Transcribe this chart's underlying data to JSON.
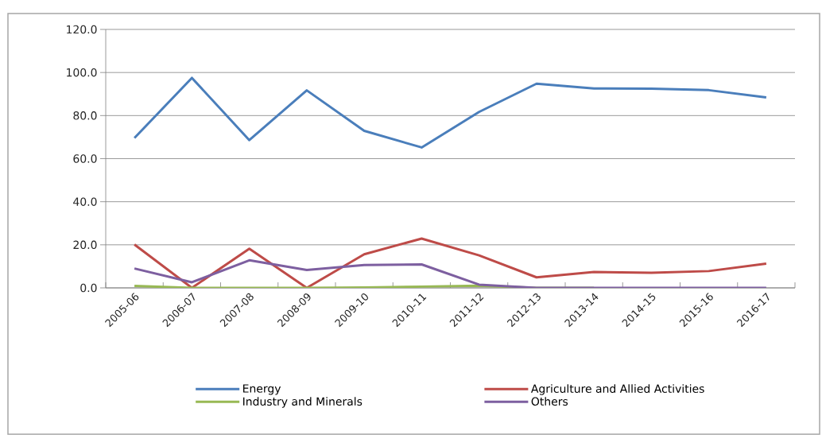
{
  "chart_data": {
    "type": "line",
    "categories": [
      "2005-06",
      "2006-07",
      "2007-08",
      "2008-09",
      "2009-10",
      "2010-11",
      "2011-12",
      "2012-13",
      "2013-14",
      "2014-15",
      "2015-16",
      "2016-17"
    ],
    "series": [
      {
        "name": "Energy",
        "color": "#4a7ebb",
        "values": [
          69.6,
          97.5,
          68.6,
          91.7,
          72.9,
          65.2,
          81.7,
          94.8,
          92.6,
          92.5,
          91.8,
          88.4
        ]
      },
      {
        "name": "Agriculture and Allied Activities",
        "color": "#be4b48",
        "values": [
          20.1,
          0,
          18.2,
          0,
          15.6,
          22.9,
          15.1,
          4.9,
          7.4,
          7.0,
          7.8,
          11.3
        ]
      },
      {
        "name": "Industry and Minerals",
        "color": "#98b954",
        "values": [
          0.9,
          0,
          0,
          0,
          0.2,
          0.6,
          1.0,
          0,
          0,
          null,
          null,
          null
        ]
      },
      {
        "name": "Others",
        "color": "#7d5fa0",
        "values": [
          9.0,
          2.6,
          12.8,
          8.3,
          10.6,
          10.9,
          1.5,
          0,
          0,
          0,
          0,
          0
        ]
      }
    ],
    "ylim": [
      0,
      120
    ],
    "yticks": [
      {
        "value": 0,
        "label": "0.0"
      },
      {
        "value": 20,
        "label": "20.0"
      },
      {
        "value": 40,
        "label": "40.0"
      },
      {
        "value": 60,
        "label": "60.0"
      },
      {
        "value": 80,
        "label": "80.0"
      },
      {
        "value": 100,
        "label": "100.0"
      },
      {
        "value": 120,
        "label": "120.0"
      }
    ],
    "grid": "y",
    "legend": "bottom",
    "marker": "none",
    "line_style": "solid"
  }
}
